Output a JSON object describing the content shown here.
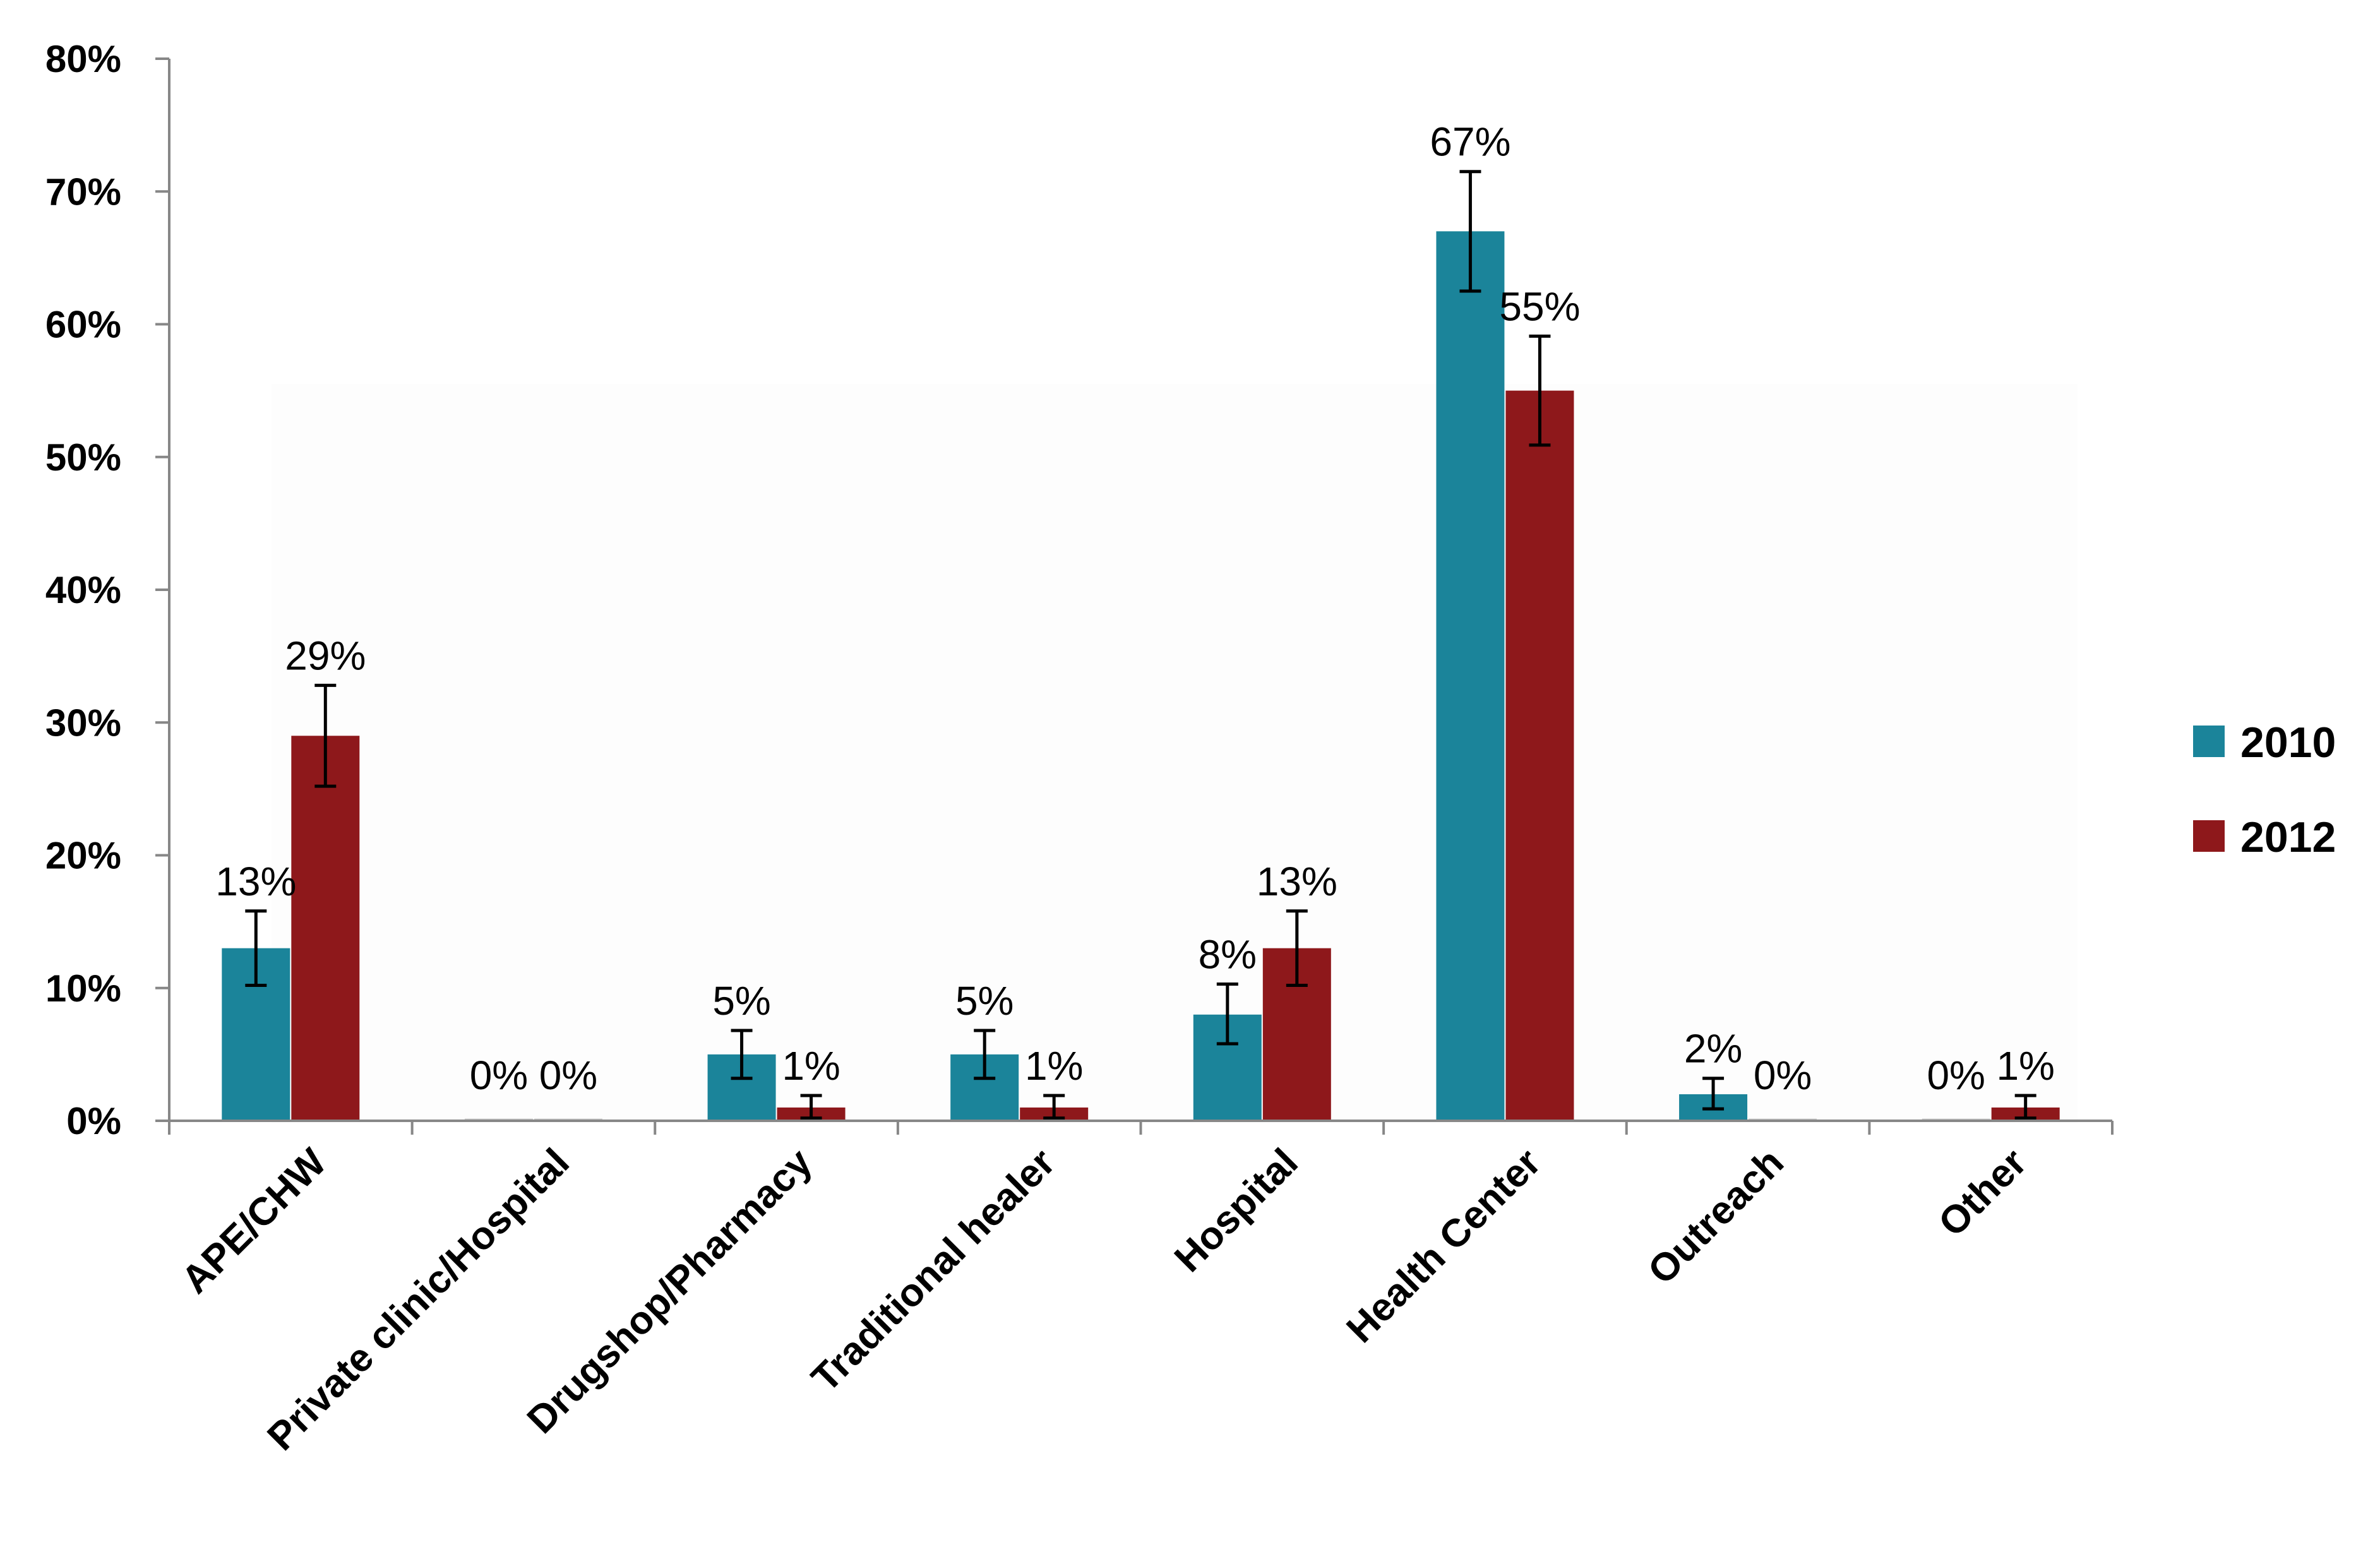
{
  "chart_data": {
    "type": "bar",
    "title": "",
    "xlabel": "",
    "ylabel": "",
    "ylim": [
      0,
      80
    ],
    "yticks": [
      0,
      10,
      20,
      30,
      40,
      50,
      60,
      70,
      80
    ],
    "ytick_labels": [
      "0%",
      "10%",
      "20%",
      "30%",
      "40%",
      "50%",
      "60%",
      "70%",
      "80%"
    ],
    "categories": [
      "APE/CHW",
      "Private clinic/Hospital",
      "Drugshop/Pharmacy",
      "Traditional healer",
      "Hospital",
      "Health Center",
      "Outreach",
      "Other"
    ],
    "series": [
      {
        "name": "2010",
        "color": "#1b849a",
        "values": [
          13,
          0,
          5,
          5,
          8,
          67,
          2,
          0
        ],
        "labels": [
          "13%",
          "0%",
          "5%",
          "5%",
          "8%",
          "67%",
          "2%",
          "0%"
        ],
        "error_low": [
          10.2,
          0,
          3.2,
          3.2,
          5.8,
          62.5,
          0.9,
          0
        ],
        "error_high": [
          15.8,
          0,
          6.8,
          6.8,
          10.3,
          71.5,
          3.2,
          0
        ]
      },
      {
        "name": "2012",
        "color": "#8e181b",
        "values": [
          29,
          0,
          1,
          1,
          13,
          55,
          0,
          1
        ],
        "labels": [
          "29%",
          "0%",
          "1%",
          "1%",
          "13%",
          "55%",
          "0%",
          "1%"
        ],
        "error_low": [
          25.2,
          0,
          0.2,
          0.2,
          10.2,
          50.9,
          0,
          0.2
        ],
        "error_high": [
          32.8,
          0,
          1.9,
          1.9,
          15.8,
          59.1,
          0,
          1.9
        ]
      }
    ],
    "legend": {
      "position": "right",
      "entries": [
        "2010",
        "2012"
      ]
    },
    "grid": false
  }
}
